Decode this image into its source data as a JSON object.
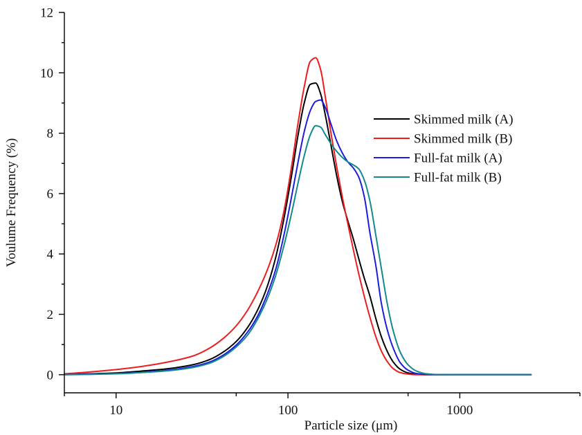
{
  "chart_data": {
    "type": "line",
    "xscale": "log",
    "xlabel": "Particle size (μm)",
    "ylabel": "Voulume Frequency (%)",
    "xlim": [
      5,
      5000
    ],
    "ylim": [
      -0.6,
      12
    ],
    "xticks": [
      10,
      100,
      1000
    ],
    "xtick_labels": [
      "10",
      "100",
      "1000"
    ],
    "xminor_ticks": [
      5,
      50,
      500,
      5000
    ],
    "yticks": [
      0,
      2,
      4,
      6,
      8,
      10,
      12
    ],
    "ytick_labels": [
      "0",
      "2",
      "4",
      "6",
      "8",
      "10",
      "12"
    ],
    "yminor_ticks": [
      1,
      3,
      5,
      7,
      9,
      11
    ],
    "grid": false,
    "legend_position": "right",
    "x": [
      5,
      7,
      10,
      14,
      20,
      28,
      35,
      42,
      50,
      58,
      66,
      75,
      85,
      95,
      105,
      115,
      125,
      135,
      145,
      155,
      165,
      178,
      192,
      207,
      223,
      240,
      258,
      278,
      300,
      325,
      350,
      380,
      410,
      450,
      500,
      560,
      640,
      750,
      1000,
      1500,
      2000,
      2600
    ],
    "series": [
      {
        "name": "Skimmed milk (A)",
        "color": "#000000",
        "values": [
          0.01,
          0.03,
          0.06,
          0.12,
          0.2,
          0.33,
          0.5,
          0.75,
          1.1,
          1.55,
          2.1,
          2.85,
          3.9,
          5.2,
          6.6,
          8.0,
          9.05,
          9.62,
          9.66,
          9.3,
          8.6,
          7.6,
          6.6,
          5.75,
          5.1,
          4.5,
          3.85,
          3.2,
          2.6,
          1.85,
          1.25,
          0.75,
          0.42,
          0.18,
          0.06,
          0.015,
          0,
          0,
          0,
          0,
          0,
          0
        ]
      },
      {
        "name": "Skimmed milk (B)",
        "color": "#ee1c1c",
        "values": [
          0.03,
          0.09,
          0.17,
          0.27,
          0.42,
          0.62,
          0.88,
          1.2,
          1.62,
          2.12,
          2.7,
          3.4,
          4.3,
          5.45,
          6.9,
          8.4,
          9.6,
          10.38,
          10.5,
          10.1,
          9.2,
          8.0,
          6.9,
          5.9,
          5.0,
          4.15,
          3.35,
          2.6,
          1.9,
          1.25,
          0.78,
          0.42,
          0.2,
          0.07,
          0.02,
          0,
          0,
          0,
          0,
          0,
          0,
          0
        ]
      },
      {
        "name": "Full-fat milk (A)",
        "color": "#1c1cde",
        "values": [
          0,
          0.02,
          0.04,
          0.08,
          0.15,
          0.27,
          0.42,
          0.65,
          0.98,
          1.4,
          1.9,
          2.6,
          3.5,
          4.65,
          5.9,
          7.1,
          8.1,
          8.75,
          9.05,
          9.1,
          8.85,
          8.3,
          7.75,
          7.35,
          7.05,
          6.85,
          6.55,
          5.9,
          4.7,
          3.6,
          2.35,
          1.45,
          0.88,
          0.4,
          0.15,
          0.04,
          0.01,
          0,
          0,
          0,
          0,
          0
        ]
      },
      {
        "name": "Full-fat milk (B)",
        "color": "#12898a",
        "values": [
          0,
          0.01,
          0.03,
          0.07,
          0.13,
          0.24,
          0.38,
          0.6,
          0.92,
          1.3,
          1.8,
          2.45,
          3.3,
          4.3,
          5.35,
          6.4,
          7.3,
          7.95,
          8.25,
          8.2,
          7.95,
          7.65,
          7.4,
          7.2,
          7.05,
          6.95,
          6.82,
          6.45,
          5.75,
          4.6,
          3.5,
          2.3,
          1.45,
          0.75,
          0.33,
          0.12,
          0.03,
          0.005,
          0,
          0,
          0,
          0
        ]
      }
    ]
  }
}
